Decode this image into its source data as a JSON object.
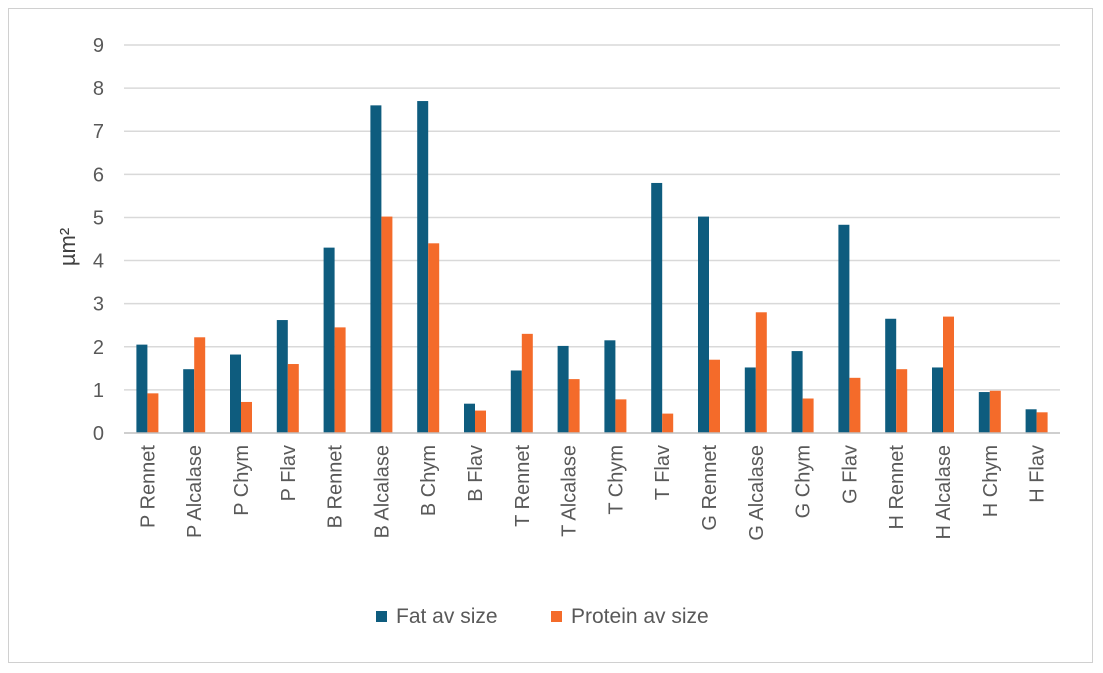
{
  "chart_data": {
    "type": "bar",
    "title": "",
    "xlabel": "",
    "ylabel": "µm²",
    "ylim": [
      0,
      9
    ],
    "yticks": [
      0,
      1,
      2,
      3,
      4,
      5,
      6,
      7,
      8,
      9
    ],
    "grid": true,
    "legend_position": "bottom",
    "categories": [
      "P Rennet",
      "P Alcalase",
      "P Chym",
      "P Flav",
      "B Rennet",
      "B Alcalase",
      "B Chym",
      "B Flav",
      "T Rennet",
      "T Alcalase",
      "T Chym",
      "T Flav",
      "G Rennet",
      "G Alcalase",
      "G Chym",
      "G Flav",
      "H Rennet",
      "H Alcalase",
      "H Chym",
      "H Flav"
    ],
    "series": [
      {
        "name": "Fat av size",
        "color": "#0e5c7e",
        "values": [
          2.05,
          1.48,
          1.82,
          2.62,
          4.3,
          7.6,
          7.7,
          0.68,
          1.45,
          2.02,
          2.15,
          5.8,
          5.02,
          1.52,
          1.9,
          4.83,
          2.65,
          1.52,
          0.95,
          0.55
        ]
      },
      {
        "name": "Protein av size",
        "color": "#f46b2a",
        "values": [
          0.92,
          2.22,
          0.72,
          1.6,
          2.45,
          5.02,
          4.4,
          0.52,
          2.3,
          1.25,
          0.78,
          0.45,
          1.7,
          2.8,
          0.8,
          1.28,
          1.48,
          2.7,
          0.98,
          0.48
        ]
      }
    ]
  }
}
